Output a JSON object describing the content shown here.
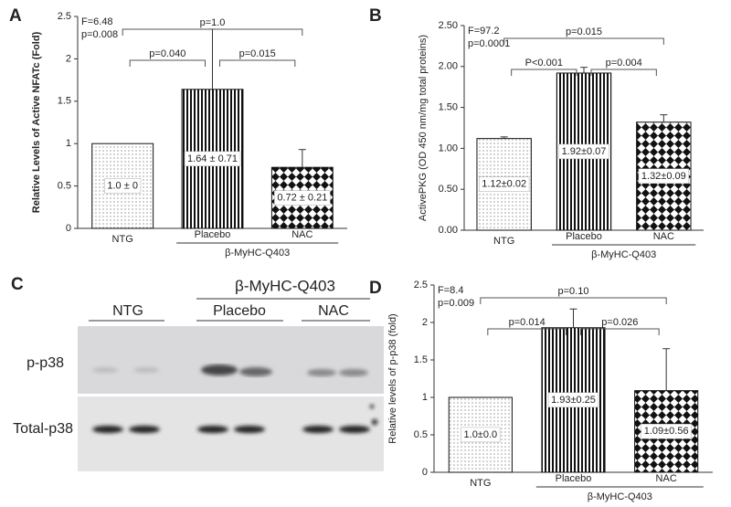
{
  "chart_data": [
    {
      "type": "bar",
      "panel": "A",
      "ylabel": "Relative Levels of Active NFATc (Fold)",
      "categories": [
        "NTG",
        "Placebo",
        "NAC"
      ],
      "values": [
        1.0,
        1.64,
        0.72
      ],
      "errors": [
        0,
        0.71,
        0.21
      ],
      "value_labels": [
        "1.0 ± 0",
        "1.64 ± 0.71",
        "0.72 ± 0.21"
      ],
      "patterns": [
        "dots",
        "stripes",
        "checker"
      ],
      "ylim": [
        0,
        2.5
      ],
      "yticks": [
        0,
        0.5,
        1,
        1.5,
        2,
        2.5
      ],
      "stats": [
        "F=6.48",
        "p=0.008"
      ],
      "group": {
        "label": "β-MyHC-Q403",
        "members": [
          "Placebo",
          "NAC"
        ]
      },
      "brackets": [
        {
          "label": "p=0.040",
          "between": [
            "NTG",
            "Placebo"
          ]
        },
        {
          "label": "p=0.015",
          "between": [
            "Placebo",
            "NAC"
          ]
        },
        {
          "label": "p=1.0",
          "between": [
            "NTG",
            "NAC"
          ]
        }
      ]
    },
    {
      "type": "bar",
      "panel": "B",
      "ylabel": "ActivePKG (OD 450 nm/mg total proteins)",
      "categories": [
        "NTG",
        "Placebo",
        "NAC"
      ],
      "values": [
        1.12,
        1.92,
        1.32
      ],
      "errors": [
        0.02,
        0.07,
        0.09
      ],
      "value_labels": [
        "1.12±0.02",
        "1.92±0.07",
        "1.32±0.09"
      ],
      "patterns": [
        "dots",
        "stripes",
        "checker"
      ],
      "ylim": [
        0,
        2.5
      ],
      "yticks": [
        {
          "value": 0,
          "label": "0.00"
        },
        {
          "value": 0.5,
          "label": "0.50"
        },
        {
          "value": 1,
          "label": "1.00"
        },
        {
          "value": 1.5,
          "label": "1.50"
        },
        {
          "value": 2,
          "label": "2.00"
        },
        {
          "value": 2.5,
          "label": "2.50"
        }
      ],
      "stats": [
        "F=97.2",
        "p=0.0001"
      ],
      "group": {
        "label": "β-MyHC-Q403",
        "members": [
          "Placebo",
          "NAC"
        ]
      },
      "brackets": [
        {
          "label": "P<0.001",
          "between": [
            "NTG",
            "Placebo"
          ]
        },
        {
          "label": "p=0.004",
          "between": [
            "Placebo",
            "NAC"
          ]
        },
        {
          "label": "p=0.015",
          "between": [
            "NTG",
            "NAC"
          ]
        }
      ]
    },
    {
      "type": "bar",
      "panel": "D",
      "ylabel": "Relative levels of p-p38 (fold)",
      "categories": [
        "NTG",
        "Placebo",
        "NAC"
      ],
      "values": [
        1.0,
        1.93,
        1.09
      ],
      "errors": [
        0,
        0.25,
        0.56
      ],
      "value_labels": [
        "1.0±0.0",
        "1.93±0.25",
        "1.09±0.56"
      ],
      "patterns": [
        "dots",
        "stripes",
        "checker"
      ],
      "ylim": [
        0,
        2.5
      ],
      "yticks": [
        0,
        0.5,
        1,
        1.5,
        2,
        2.5
      ],
      "stats": [
        "F=8.4",
        "p=0.009"
      ],
      "group": {
        "label": "β-MyHC-Q403",
        "members": [
          "Placebo",
          "NAC"
        ]
      },
      "brackets": [
        {
          "label": "p=0.014",
          "between": [
            "NTG",
            "Placebo"
          ]
        },
        {
          "label": "p=0.026",
          "between": [
            "Placebo",
            "NAC"
          ]
        },
        {
          "label": "p=0.10",
          "between": [
            "NTG",
            "NAC"
          ]
        }
      ]
    }
  ],
  "blot": {
    "panel": "C",
    "group": "β-MyHC-Q403",
    "lanes": [
      "NTG",
      "Placebo",
      "NAC"
    ],
    "rows": [
      "p-p38",
      "Total-p38"
    ]
  }
}
